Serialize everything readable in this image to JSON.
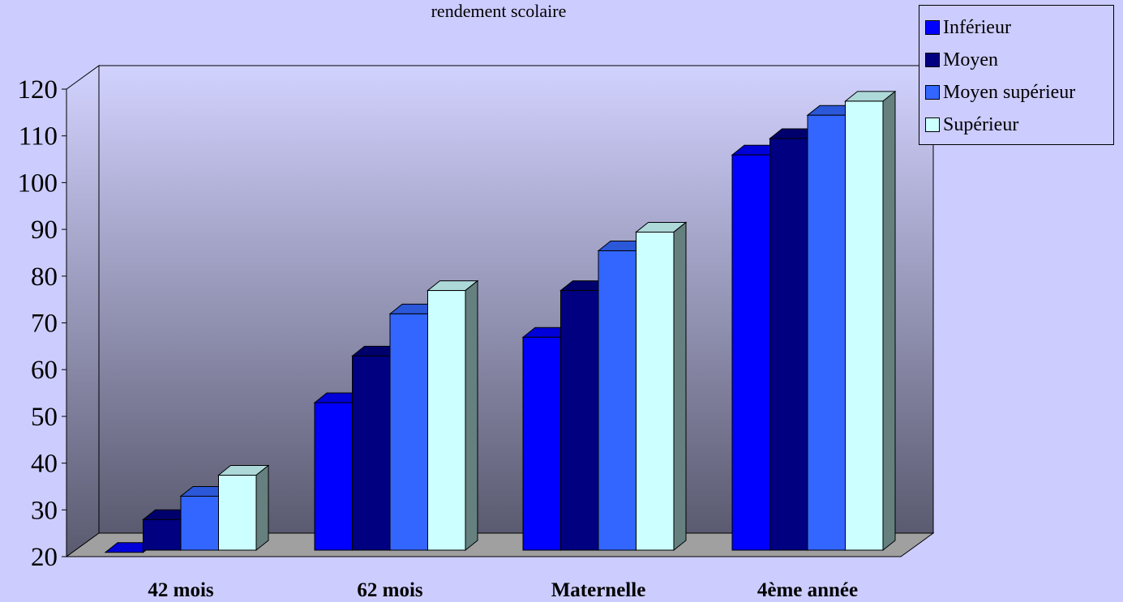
{
  "chart_data": {
    "type": "bar",
    "title": "rendement scolaire",
    "categories": [
      "42 mois",
      "62 mois",
      "Maternelle",
      "4ème année"
    ],
    "series": [
      {
        "name": "Inférieur",
        "values": [
          23,
          55,
          69,
          108
        ],
        "color": "#0000ff"
      },
      {
        "name": "Moyen",
        "values": [
          30,
          65,
          79,
          111.5
        ],
        "color": "#000080"
      },
      {
        "name": "Moyen supérieur",
        "values": [
          35,
          74,
          87.5,
          116.5
        ],
        "color": "#3366ff"
      },
      {
        "name": "Supérieur",
        "values": [
          39.5,
          79,
          91.5,
          119.5
        ],
        "color": "#ccffff"
      }
    ],
    "ylim": [
      20,
      120
    ],
    "yticks": [
      20,
      30,
      40,
      50,
      60,
      70,
      80,
      90,
      100,
      110,
      120
    ],
    "xlabel": "",
    "ylabel": "",
    "grid": false,
    "legend_position": "top-right",
    "three_d": true,
    "colors": {
      "background": "#ccccff",
      "wall_top": "#d2d2ff",
      "wall_bottom": "#5a5a70",
      "floor": "#a0a0a0"
    }
  }
}
